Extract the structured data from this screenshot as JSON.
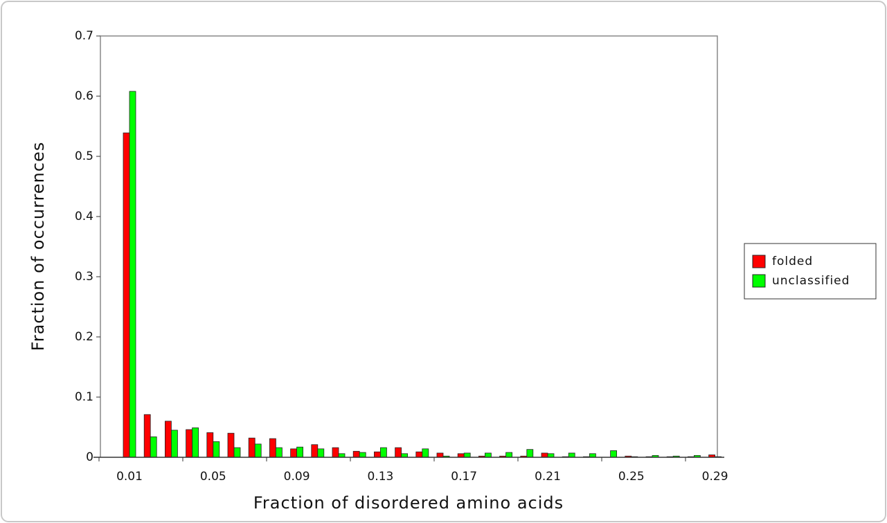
{
  "chart_data": {
    "type": "bar",
    "xlabel": "Fraction of disordered amino acids",
    "ylabel": "Fraction of occurrences",
    "categories": [
      "0.01",
      null,
      null,
      null,
      "0.05",
      null,
      null,
      null,
      "0.09",
      null,
      null,
      null,
      "0.13",
      null,
      null,
      null,
      "0.17",
      null,
      null,
      null,
      "0.21",
      null,
      null,
      null,
      "0.25",
      null,
      null,
      null,
      "0.29"
    ],
    "series": [
      {
        "name": "folded",
        "color": "#ff0000",
        "values": [
          0.539,
          0.071,
          0.06,
          0.046,
          0.041,
          0.04,
          0.032,
          0.031,
          0.014,
          0.021,
          0.016,
          0.01,
          0.009,
          0.016,
          0.009,
          0.007,
          0.006,
          0.002,
          0.002,
          0.002,
          0.007,
          0.001,
          0.001,
          0,
          0.002,
          0.001,
          0.001,
          0.001,
          0.004
        ]
      },
      {
        "name": "unclassified",
        "color": "#00ff00",
        "values": [
          0.608,
          0.034,
          0.045,
          0.049,
          0.026,
          0.016,
          0.022,
          0.016,
          0.017,
          0.014,
          0.006,
          0.008,
          0.016,
          0.006,
          0.014,
          0.002,
          0.007,
          0.007,
          0.008,
          0.013,
          0.006,
          0.007,
          0.006,
          0.011,
          0.001,
          0.003,
          0.002,
          0.003,
          0.001
        ]
      }
    ],
    "ylim": [
      0,
      0.7
    ],
    "yticks": [
      0,
      0.1,
      0.2,
      0.3,
      0.4,
      0.5,
      0.6,
      0.7
    ],
    "legend": "right"
  }
}
